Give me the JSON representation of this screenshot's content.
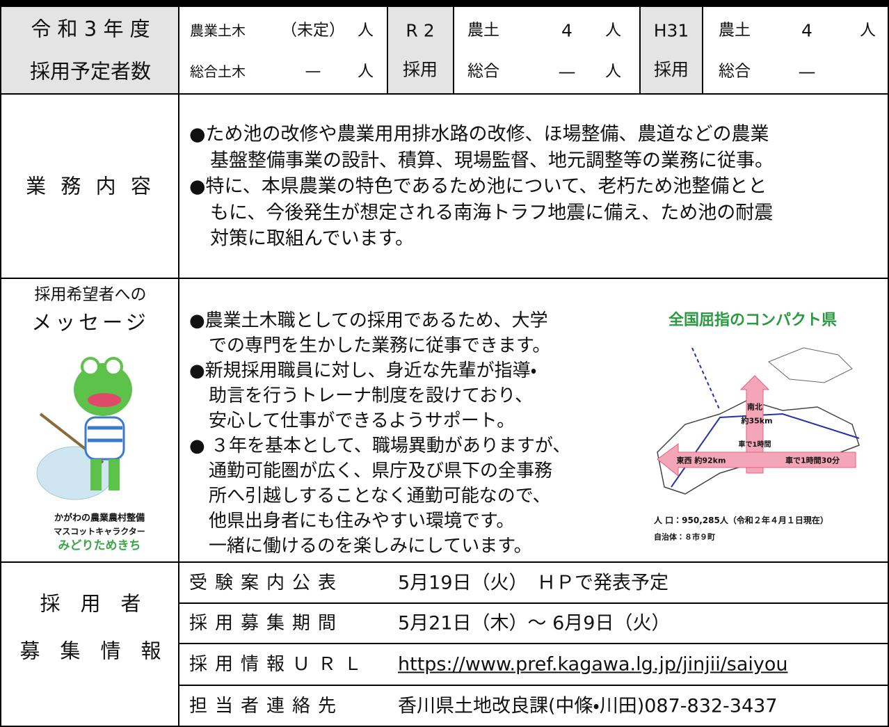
{
  "recruitment": {
    "label": [
      "令 和 3 年 度",
      "採用予定者数"
    ],
    "current": [
      {
        "field": "農業土木",
        "count": "（未定）",
        "unit": "人"
      },
      {
        "field": "総合土木",
        "count": "—",
        "unit": "人"
      }
    ],
    "r2": {
      "label": [
        "R 2",
        "採用"
      ],
      "rows": [
        {
          "field": "農土",
          "count": "4",
          "unit": "人"
        },
        {
          "field": "総合",
          "count": "—",
          "unit": "人"
        }
      ]
    },
    "h31": {
      "label": [
        "H31",
        "採用"
      ],
      "rows": [
        {
          "field": "農土",
          "count": "4",
          "unit": "人"
        },
        {
          "field": "総合",
          "count": "—"
        }
      ]
    }
  },
  "duties": {
    "label": "業 務 内 容",
    "lines": [
      "●ため池の改修や農業用用排水路の改修、ほ場整備、農道などの農業",
      "基盤整備事業の設計、積算、現場監督、地元調整等の業務に従事。",
      "●特に、本県農業の特色であるため池について、老朽ため池整備とと",
      "もに、今後発生が想定される南海トラフ地震に備え、ため池の耐震",
      "対策に取組んでいます。"
    ]
  },
  "message": {
    "label": [
      "採用希望者への",
      "メッセージ"
    ],
    "lines": [
      "●農業土木職としての採用であるため、大学",
      "での専門を生かした業務に従事できます。",
      "●新規採用職員に対し、身近な先輩が指導・",
      "助言を行うトレーナ制度を設けており、",
      "安心して仕事ができるようサポート。",
      "● ３年を基本として、職場異動がありますが、",
      "通勤可能圏が広く、県庁及び県下の全事務",
      "所へ引越しすることなく通勤可能なので、",
      "他県出身者にも住みやすい環境です。",
      "一緒に働けるのを楽しみにしています。"
    ],
    "mascot_caption": [
      "かがわの農業農村整備",
      "マスコットキャラクター",
      "みどりためきち"
    ],
    "map": {
      "title": "全国屈指のコンパクト県",
      "north_south": [
        "南北",
        "約35km",
        "車で1時間"
      ],
      "east_west": [
        "東西 約92km",
        "車で1時間30分"
      ],
      "population": "人 口：950,285人（令和２年４月１日現在）",
      "municipalities": "自治体：８市９町"
    }
  },
  "info": {
    "label": [
      "採　用　者",
      "募　集　情　報"
    ],
    "rows": [
      {
        "label": "受験案内公表",
        "value": "5月19日（火）　ＨＰで発表予定"
      },
      {
        "label": "採用募集期間",
        "value": "5月21日（木）～ 6月9日（火）"
      },
      {
        "label": "採用情報ＵＲＬ",
        "value": "https://www.pref.kagawa.lg.jp/jinjii/saiyou"
      },
      {
        "label": "担当者連絡先",
        "value": "香川県土地改良課(中條・川田)087-832-3437"
      }
    ]
  }
}
